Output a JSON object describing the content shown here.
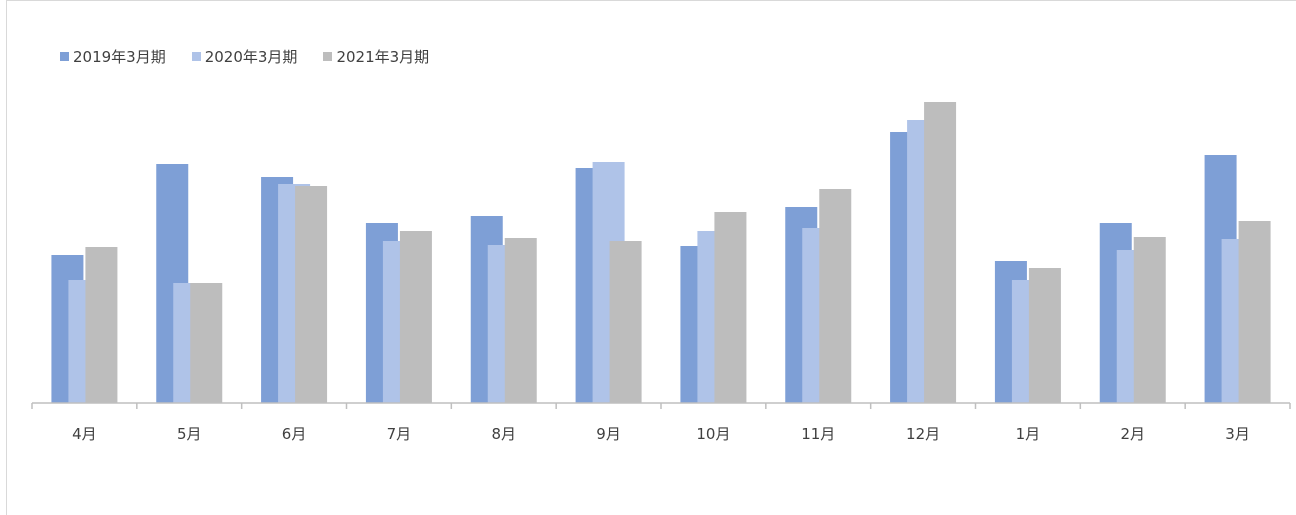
{
  "chart_data": {
    "type": "bar",
    "categories": [
      "4月",
      "5月",
      "6月",
      "7月",
      "8月",
      "9月",
      "10月",
      "11月",
      "12月",
      "1月",
      "2月",
      "3月"
    ],
    "series": [
      {
        "name": "2019年3月期",
        "color": "#7e9fd6",
        "values": [
          148,
          239,
          226,
          180,
          187,
          235,
          157,
          196,
          271,
          142,
          180,
          248
        ]
      },
      {
        "name": "2020年3月期",
        "color": "#afc3e8",
        "values": [
          123,
          120,
          219,
          162,
          158,
          241,
          172,
          175,
          283,
          123,
          153,
          164
        ]
      },
      {
        "name": "2021年3月期",
        "color": "#bdbdbd",
        "values": [
          156,
          120,
          217,
          172,
          165,
          162,
          191,
          214,
          301,
          135,
          166,
          182
        ]
      }
    ],
    "ylim": [
      0,
      320
    ],
    "title": "",
    "xlabel": "",
    "ylabel": "",
    "grid": false,
    "legend": "top-left"
  }
}
